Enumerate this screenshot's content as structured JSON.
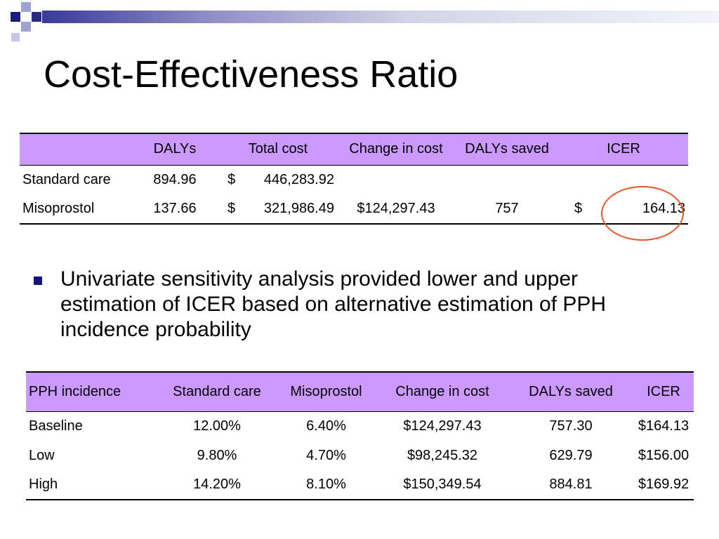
{
  "title": "Cost-Effectiveness Ratio",
  "table1": {
    "headers": [
      "",
      "DALYs",
      "Total cost",
      "Change in cost",
      "DALYs saved",
      "ICER"
    ],
    "rows": [
      {
        "label": "Standard care",
        "dalys": "894.96",
        "cost_sym": "$",
        "cost_val": "446,283.92",
        "change": "",
        "saved": "",
        "icer_sym": "",
        "icer_val": ""
      },
      {
        "label": "Misoprostol",
        "dalys": "137.66",
        "cost_sym": "$",
        "cost_val": "321,986.49",
        "change": "$124,297.43",
        "saved": "757",
        "icer_sym": "$",
        "icer_val": "164.13"
      }
    ]
  },
  "bullet": "Univariate sensitivity analysis provided lower and upper estimation of ICER based on alternative estimation of PPH incidence probability",
  "table2": {
    "headers": [
      "PPH incidence",
      "Standard care",
      "Misoprostol",
      "Change in cost",
      "DALYs saved",
      "ICER"
    ],
    "rows": [
      [
        "Baseline",
        "12.00%",
        "6.40%",
        "$124,297.43",
        "757.30",
        "$164.13"
      ],
      [
        "Low",
        "9.80%",
        "4.70%",
        "$98,245.32",
        "629.79",
        "$156.00"
      ],
      [
        "High",
        "14.20%",
        "8.10%",
        "$150,349.54",
        "884.81",
        "$169.92"
      ]
    ]
  },
  "colors": {
    "header_fill": "#cc99ff",
    "highlight_ellipse": "#e8582a",
    "bullet": "#141480"
  }
}
